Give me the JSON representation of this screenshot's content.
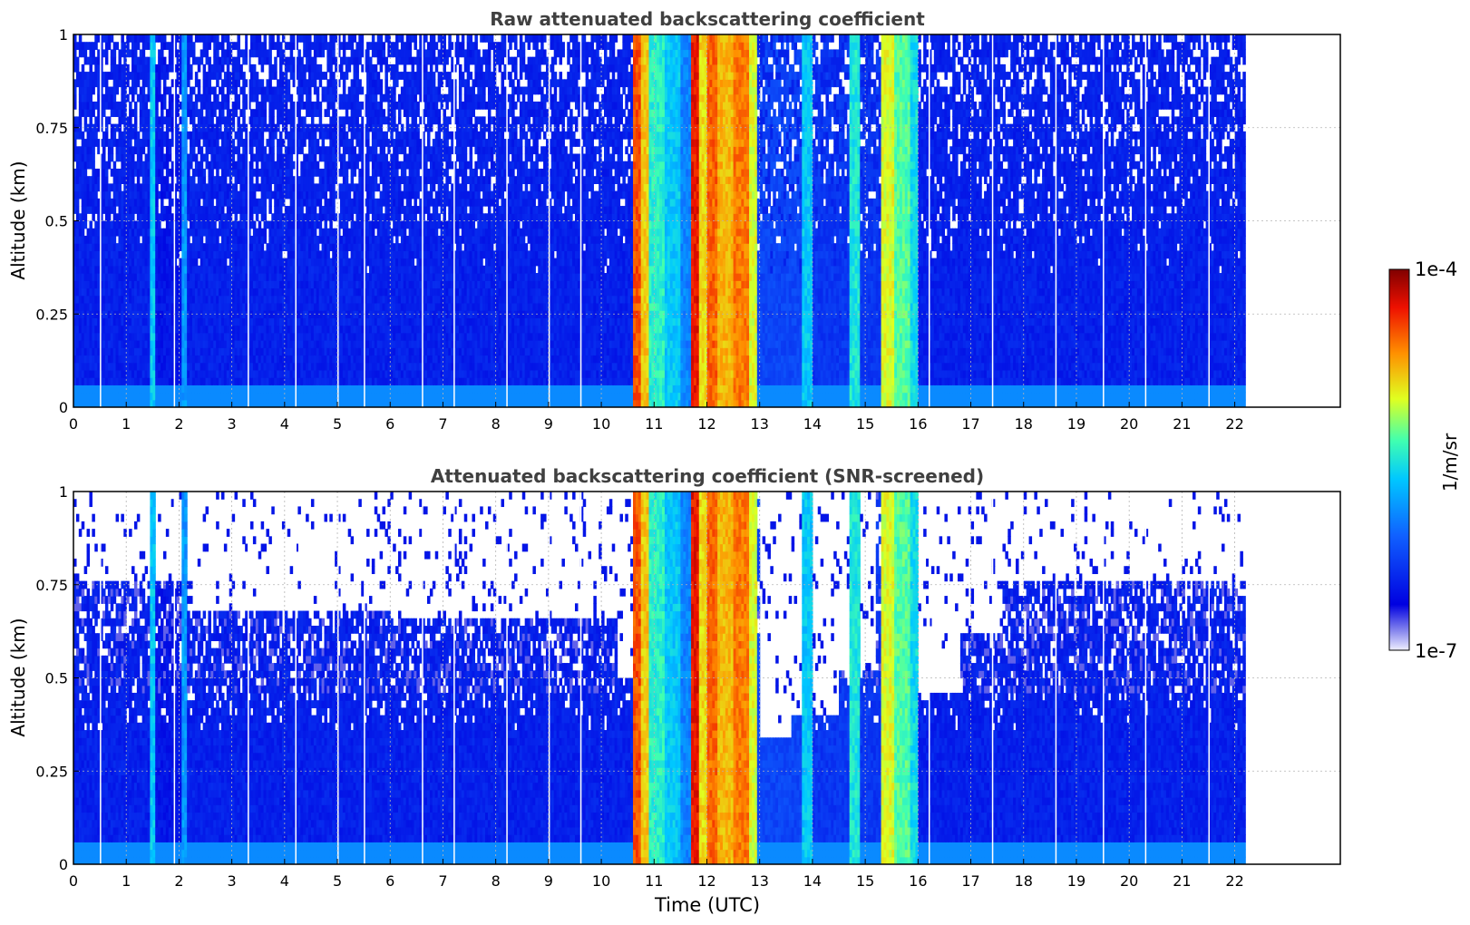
{
  "chart_data": [
    {
      "type": "heatmap",
      "title": "Raw attenuated backscattering coefficient",
      "xlabel": "",
      "ylabel": "Altitude (km)",
      "xlim": [
        0,
        24
      ],
      "ylim": [
        0,
        1
      ],
      "x_ticks": [
        "0",
        "1",
        "2",
        "3",
        "4",
        "5",
        "6",
        "7",
        "8",
        "9",
        "10",
        "11",
        "12",
        "13",
        "14",
        "15",
        "16",
        "17",
        "18",
        "19",
        "20",
        "21",
        "22"
      ],
      "y_ticks": [
        "0",
        "0.25",
        "0.5",
        "0.75",
        "1"
      ],
      "data_extent_hours": [
        0,
        22.2
      ],
      "grid": true,
      "log_scale": true,
      "time_profile": [
        {
          "t": [
            0,
            1.45
          ],
          "level": 0.18
        },
        {
          "t": [
            1.45,
            1.55
          ],
          "level": 0.45
        },
        {
          "t": [
            1.55,
            2.05
          ],
          "level": 0.16
        },
        {
          "t": [
            2.05,
            2.15
          ],
          "level": 0.38
        },
        {
          "t": [
            2.15,
            10.6
          ],
          "level": 0.18
        },
        {
          "t": [
            10.6,
            10.75
          ],
          "level": 0.84
        },
        {
          "t": [
            10.75,
            10.9
          ],
          "level": 0.72
        },
        {
          "t": [
            10.9,
            11.2
          ],
          "level": 0.52
        },
        {
          "t": [
            11.2,
            11.5
          ],
          "level": 0.45
        },
        {
          "t": [
            11.5,
            11.7
          ],
          "level": 0.35
        },
        {
          "t": [
            11.7,
            11.85
          ],
          "level": 0.9
        },
        {
          "t": [
            11.85,
            12.0
          ],
          "level": 0.7
        },
        {
          "t": [
            12.0,
            12.2
          ],
          "level": 0.82
        },
        {
          "t": [
            12.2,
            12.5
          ],
          "level": 0.74
        },
        {
          "t": [
            12.5,
            12.8
          ],
          "level": 0.8
        },
        {
          "t": [
            12.8,
            12.95
          ],
          "level": 0.66
        },
        {
          "t": [
            12.95,
            13.8
          ],
          "level": 0.25
        },
        {
          "t": [
            13.8,
            14.0
          ],
          "level": 0.45
        },
        {
          "t": [
            14.0,
            14.7
          ],
          "level": 0.22
        },
        {
          "t": [
            14.7,
            14.9
          ],
          "level": 0.5
        },
        {
          "t": [
            14.9,
            15.3
          ],
          "level": 0.22
        },
        {
          "t": [
            15.3,
            15.55
          ],
          "level": 0.66
        },
        {
          "t": [
            15.55,
            15.85
          ],
          "level": 0.56
        },
        {
          "t": [
            15.85,
            16.0
          ],
          "level": 0.48
        },
        {
          "t": [
            16.0,
            22.2
          ],
          "level": 0.18
        }
      ]
    },
    {
      "type": "heatmap",
      "title": "Attenuated backscattering coefficient (SNR-screened)",
      "xlabel": "Time (UTC)",
      "ylabel": "Altitude (km)",
      "xlim": [
        0,
        24
      ],
      "ylim": [
        0,
        1
      ],
      "x_ticks": [
        "0",
        "1",
        "2",
        "3",
        "4",
        "5",
        "6",
        "7",
        "8",
        "9",
        "10",
        "11",
        "12",
        "13",
        "14",
        "15",
        "16",
        "17",
        "18",
        "19",
        "20",
        "21",
        "22"
      ],
      "y_ticks": [
        "0",
        "0.25",
        "0.5",
        "0.75",
        "1"
      ],
      "data_extent_hours": [
        0,
        22.2
      ],
      "grid": true,
      "log_scale": true,
      "screened_top_km": [
        {
          "t": [
            0,
            2.2
          ],
          "top": 0.75
        },
        {
          "t": [
            2.2,
            6.0
          ],
          "top": 0.68
        },
        {
          "t": [
            6.0,
            10.3
          ],
          "top": 0.66
        },
        {
          "t": [
            10.3,
            10.6
          ],
          "top": 0.5
        },
        {
          "t": [
            10.6,
            13.0
          ],
          "top": 1.0
        },
        {
          "t": [
            13.0,
            13.6
          ],
          "top": 0.33
        },
        {
          "t": [
            13.6,
            14.5
          ],
          "top": 0.4
        },
        {
          "t": [
            14.5,
            15.2
          ],
          "top": 0.52
        },
        {
          "t": [
            15.2,
            16.0
          ],
          "top": 1.0
        },
        {
          "t": [
            16.0,
            16.8
          ],
          "top": 0.45
        },
        {
          "t": [
            16.8,
            17.6
          ],
          "top": 0.62
        },
        {
          "t": [
            17.6,
            22.2
          ],
          "top": 0.76
        }
      ]
    }
  ],
  "colorbar": {
    "label": "1/m/sr",
    "max_label": "1e-4",
    "min_label": "1e-7",
    "range": [
      1e-07,
      0.0001
    ],
    "scale": "log",
    "colormap": "jet"
  },
  "colors": {
    "axis": "#000000",
    "grid": "#b4b4b4",
    "title": "#404040",
    "background_signal": "#1a3cf0",
    "surface_layer": "#3cc8ff"
  }
}
